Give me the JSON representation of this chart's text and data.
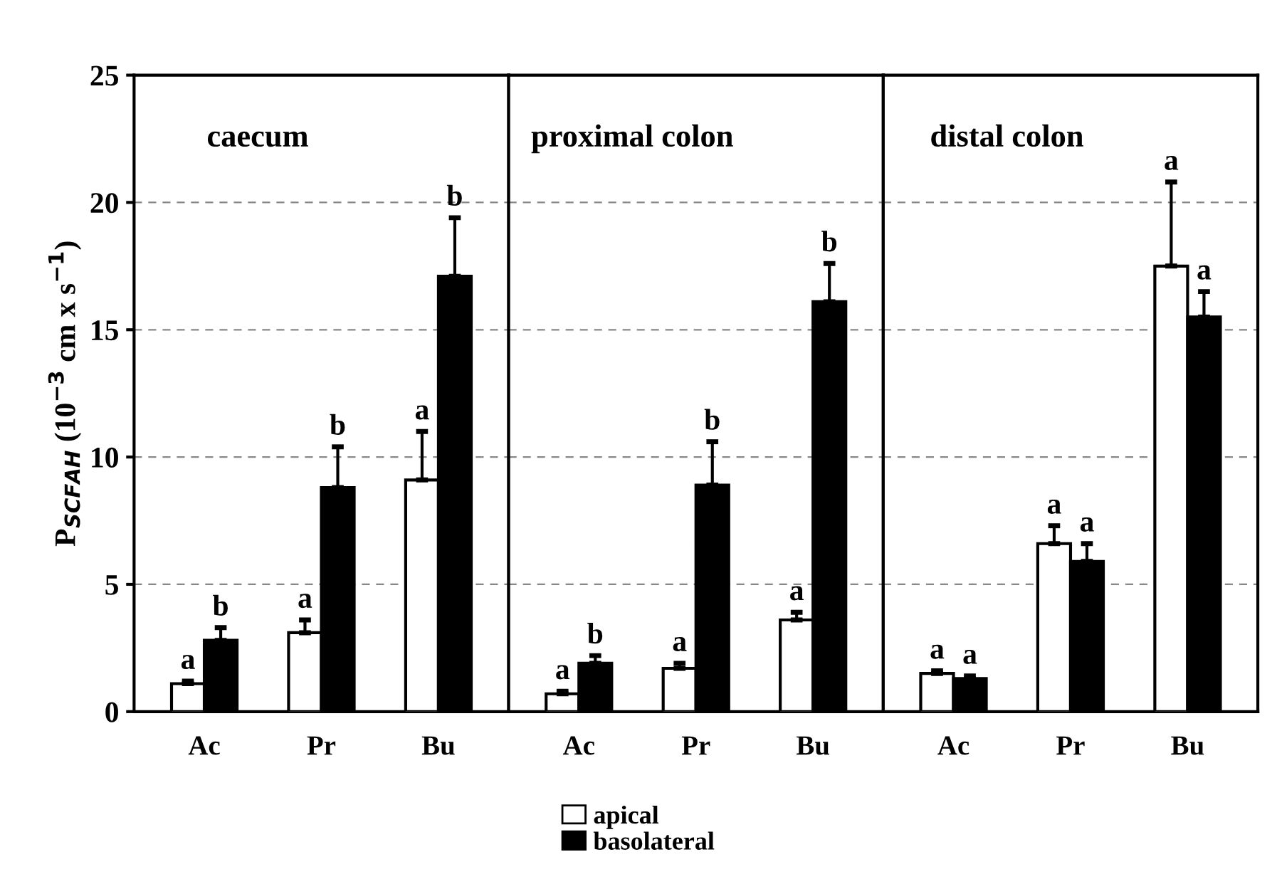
{
  "chart_data": [
    {
      "type": "bar",
      "title": "caecum",
      "ylabel": "P$_{SCFAH}$ (10$^{−3}$ cm x s$^{−1}$)",
      "categories": [
        "Ac",
        "Pr",
        "Bu"
      ],
      "ylim": [
        0,
        25
      ],
      "yticks": [
        0,
        5,
        10,
        15,
        20,
        25
      ],
      "grid": "y",
      "legend": "bottom",
      "series": [
        {
          "name": "apical",
          "color": "#ffffff",
          "values": [
            1.1,
            3.1,
            9.1
          ],
          "errors": [
            [
              1.1,
              1.2
            ],
            [
              3.1,
              3.6
            ],
            [
              9.1,
              11.0
            ]
          ]
        },
        {
          "name": "basolateral",
          "color": "#000000",
          "values": [
            2.8,
            8.8,
            17.1
          ],
          "errors": [
            [
              2.8,
              3.3
            ],
            [
              8.8,
              10.4
            ],
            [
              17.1,
              19.4
            ]
          ]
        }
      ],
      "annotations": [
        "a",
        "b",
        "a",
        "b",
        "a",
        "b"
      ]
    },
    {
      "type": "bar",
      "title": "proximal colon",
      "categories": [
        "Ac",
        "Pr",
        "Bu"
      ],
      "ylim": [
        0,
        25
      ],
      "yticks": [
        0,
        5,
        10,
        15,
        20,
        25
      ],
      "grid": "y",
      "tick_labels": "x",
      "series": [
        {
          "color": "#ffffff",
          "values": [
            0.7,
            1.7,
            3.6
          ],
          "errors": [
            [
              0.7,
              0.8
            ],
            [
              1.7,
              1.9
            ],
            [
              3.6,
              3.9
            ]
          ]
        },
        {
          "color": "#000000",
          "values": [
            1.9,
            8.9,
            16.1
          ],
          "errors": [
            [
              1.9,
              2.2
            ],
            [
              8.9,
              10.6
            ],
            [
              16.1,
              17.6
            ]
          ]
        }
      ],
      "annotations": [
        "a",
        "b",
        "a",
        "b",
        "a",
        "b"
      ]
    },
    {
      "type": "bar",
      "title": "distal colon",
      "categories": [
        "Ac",
        "Pr",
        "Bu"
      ],
      "ylim": [
        0,
        25
      ],
      "yticks": [
        0,
        5,
        10,
        15,
        20,
        25
      ],
      "grid": "y",
      "tick_labels": "x",
      "series": [
        {
          "color": "#ffffff",
          "values": [
            1.5,
            6.6,
            17.5
          ],
          "errors": [
            [
              1.5,
              1.6
            ],
            [
              6.6,
              7.3
            ],
            [
              17.5,
              20.8
            ]
          ]
        },
        {
          "color": "#000000",
          "values": [
            1.3,
            5.9,
            15.5
          ],
          "errors": [
            [
              1.3,
              1.4
            ],
            [
              5.9,
              6.6
            ],
            [
              15.5,
              16.5
            ]
          ]
        }
      ],
      "annotations": [
        "a",
        "a",
        "a",
        "a",
        "a",
        "a"
      ]
    }
  ]
}
